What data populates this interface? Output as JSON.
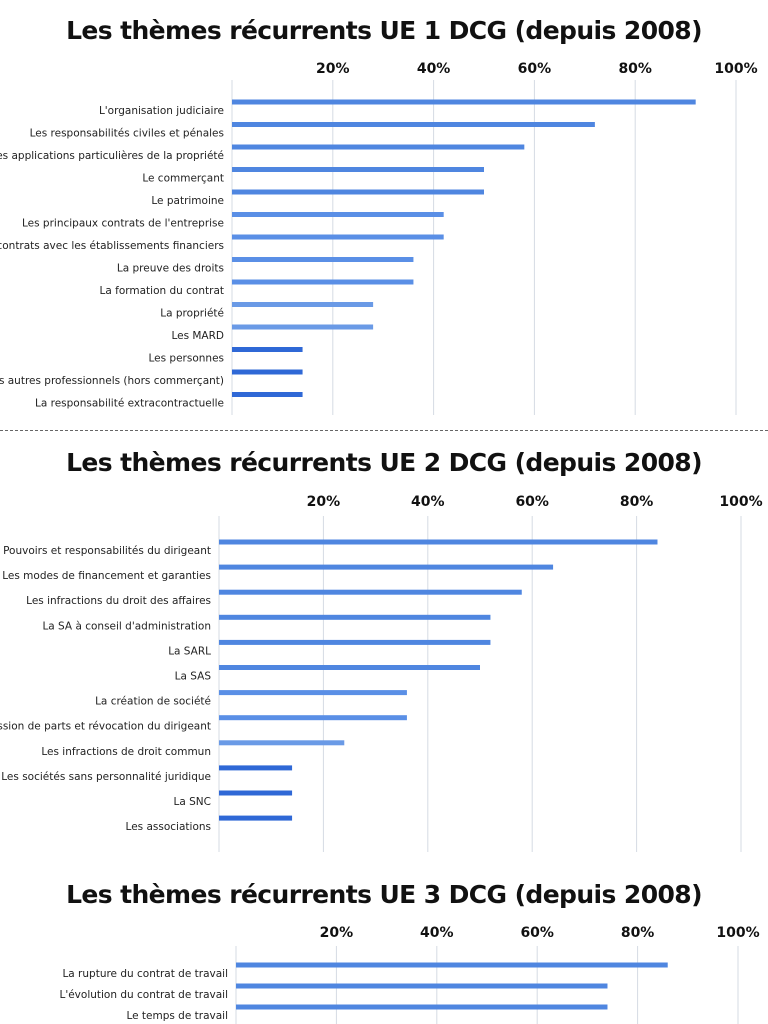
{
  "chart_data": [
    {
      "type": "bar",
      "orientation": "horizontal",
      "title": "Les thèmes récurrents UE 1 DCG (depuis 2008)",
      "xlim": [
        0,
        100
      ],
      "xticks": [
        "20%",
        "40%",
        "60%",
        "80%",
        "100%"
      ],
      "xtick_values": [
        20,
        40,
        60,
        80,
        100
      ],
      "grid": true,
      "categories": [
        "L'organisation judiciaire",
        "Les responsabilités civiles et pénales",
        "Les applications particulières de la propriété",
        "Le commerçant",
        "Le patrimoine",
        "Les principaux contrats de l'entreprise",
        "Les contrats avec les établissements financiers",
        "La preuve des droits",
        "La formation du contrat",
        "La propriété",
        "Les MARD",
        "Les personnes",
        "Les autres professionnels (hors commerçant)",
        "La responsabilité extracontractuelle"
      ],
      "values": [
        92,
        72,
        58,
        50,
        50,
        42,
        42,
        36,
        36,
        28,
        28,
        14,
        14,
        14
      ]
    },
    {
      "type": "bar",
      "orientation": "horizontal",
      "title": "Les thèmes récurrents UE 2 DCG (depuis 2008)",
      "xlim": [
        0,
        100
      ],
      "xticks": [
        "20%",
        "40%",
        "60%",
        "80%",
        "100%"
      ],
      "xtick_values": [
        20,
        40,
        60,
        80,
        100
      ],
      "grid": true,
      "categories": [
        "Pouvoirs et responsabilités du dirigeant",
        "Les modes de financement et garanties",
        "Les infractions du droit des affaires",
        "La SA à conseil d'administration",
        "La SARL",
        "La SAS",
        "La création de société",
        "Cession de parts et révocation du dirigeant",
        "Les infractions de droit commun",
        "Les sociétés sans personnalité juridique",
        "La SNC",
        "Les associations"
      ],
      "values": [
        84,
        64,
        58,
        52,
        52,
        50,
        36,
        36,
        24,
        14,
        14,
        14
      ]
    },
    {
      "type": "bar",
      "orientation": "horizontal",
      "title": "Les thèmes récurrents UE 3 DCG (depuis 2008)",
      "xlim": [
        0,
        100
      ],
      "xticks": [
        "20%",
        "40%",
        "60%",
        "80%",
        "100%"
      ],
      "xtick_values": [
        20,
        40,
        60,
        80,
        100
      ],
      "grid": true,
      "categories": [
        "La rupture du contrat de travail",
        "L'évolution du contrat de travail",
        "Le temps de travail"
      ],
      "values": [
        86,
        74,
        74
      ]
    }
  ]
}
